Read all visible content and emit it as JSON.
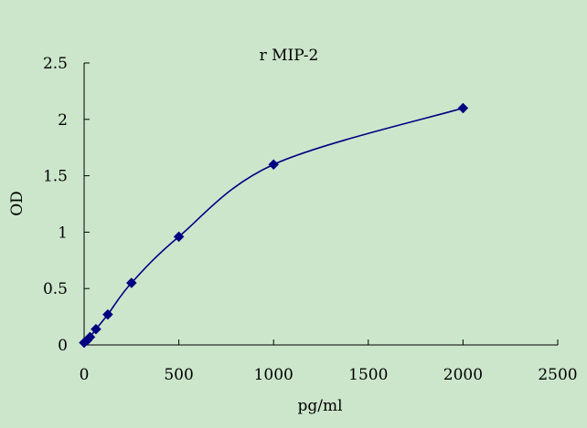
{
  "chart_data": {
    "type": "scatter",
    "title": "r MIP-2",
    "xlabel": "pg/ml",
    "ylabel": "OD",
    "xlim": [
      0,
      2500
    ],
    "ylim": [
      0,
      2.5
    ],
    "x_ticks": [
      0,
      500,
      1000,
      1500,
      2000,
      2500
    ],
    "y_ticks": [
      0,
      0.5,
      1,
      1.5,
      2,
      2.5
    ],
    "x_tick_labels": [
      "0",
      "500",
      "1000",
      "1500",
      "2000",
      "2500"
    ],
    "y_tick_labels": [
      "0",
      "0.5",
      "1",
      "1.5",
      "2",
      "2.5"
    ],
    "grid": false,
    "legend": "none",
    "series": [
      {
        "marker": "diamond",
        "line": "smooth",
        "x": [
          0,
          15.6,
          31.2,
          62.5,
          125,
          250,
          500,
          1000,
          2000
        ],
        "y": [
          0.02,
          0.04,
          0.07,
          0.14,
          0.27,
          0.55,
          0.96,
          1.6,
          2.1
        ]
      }
    ],
    "colors": {
      "background": "#cce6cc",
      "series": "#000080",
      "axis": "#000000"
    }
  }
}
